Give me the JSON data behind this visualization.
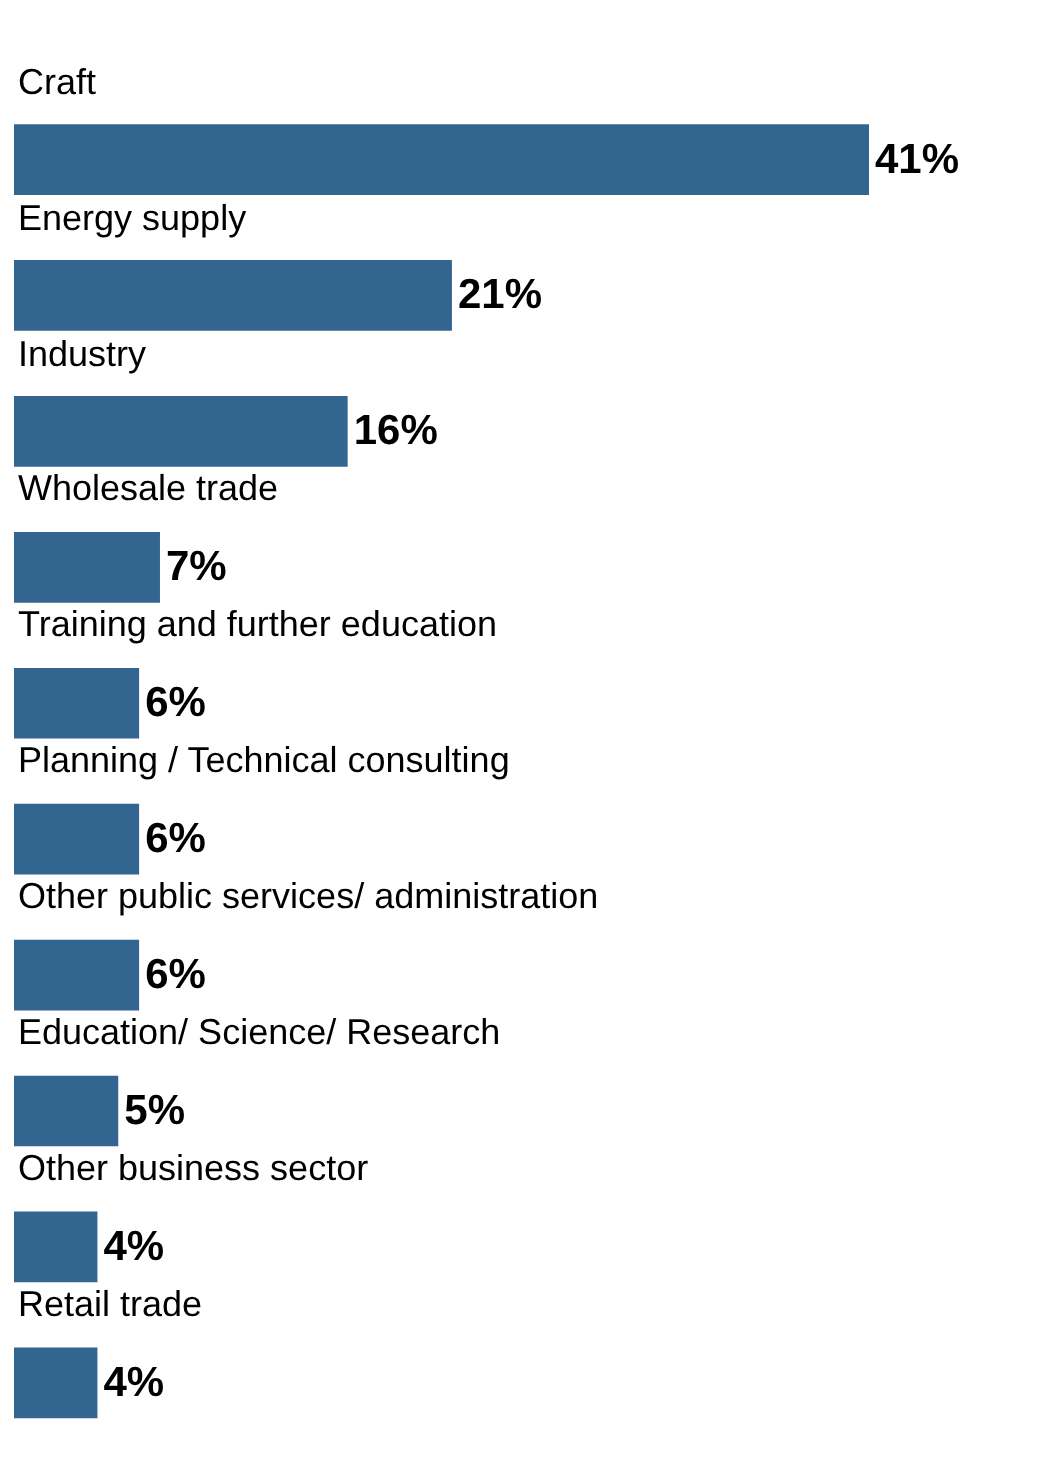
{
  "chart_data": {
    "type": "bar",
    "orientation": "horizontal",
    "categories": [
      "Craft",
      "Energy supply",
      "Industry",
      "Wholesale trade",
      "Training and further education",
      "Planning / Technical consulting",
      "Other public services/ administration",
      "Education/ Science/ Research",
      "Other business sector",
      "Retail trade"
    ],
    "values": [
      41,
      21,
      16,
      7,
      6,
      6,
      6,
      5,
      4,
      4
    ],
    "value_labels": [
      "41%",
      "21%",
      "16%",
      "7%",
      "6%",
      "6%",
      "6%",
      "5%",
      "4%",
      "4%"
    ],
    "color": "#336591"
  }
}
